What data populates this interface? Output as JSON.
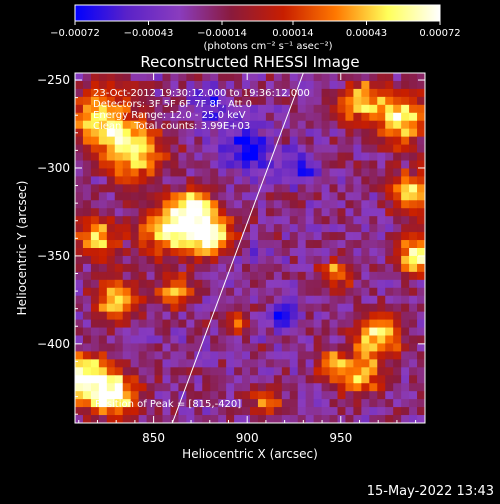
{
  "chart_data": {
    "type": "heatmap",
    "title": "Reconstructed RHESSI Image",
    "xlabel": "Heliocentric X (arcsec)",
    "ylabel": "Heliocentric Y (arcsec)",
    "xlim": [
      808,
      995
    ],
    "ylim": [
      -445,
      -246
    ],
    "x_ticks": [
      850,
      900,
      950
    ],
    "x_tick_labels": [
      "850",
      "900",
      "950"
    ],
    "y_ticks": [
      -250,
      -300,
      -350,
      -400
    ],
    "y_tick_labels": [
      "−250",
      "−300",
      "−350",
      "−400"
    ],
    "colorbar": {
      "range": [
        -0.00072,
        0.00072
      ],
      "ticks": [
        -0.00072,
        -0.00043,
        -0.00014,
        0.00014,
        0.00043,
        0.00072
      ],
      "tick_labels": [
        "−0.00072",
        "−0.00043",
        "−0.00014",
        "0.00014",
        "0.00043",
        "0.00072"
      ],
      "unit_label": "(photons cm⁻² s⁻¹ asec⁻²)",
      "colors": [
        "#0000ff",
        "#5a22c8",
        "#8a3cbe",
        "#8a1a3c",
        "#c81e00",
        "#ff7800",
        "#ffff5a",
        "#ffffff"
      ]
    },
    "annotations": [
      "23-Oct-2012 19:30:12.000 to 19:36:12.000",
      "Detectors: 3F 5F 6F 7F 8F, Att 0",
      "Energy Range: 12.0 - 25.0 keV",
      "Clean    Total counts: 3.99E+03"
    ],
    "peak_label": "Position of Peak = [815,-420]",
    "peak": [
      815,
      -420
    ],
    "limb_line": [
      [
        860,
        -445
      ],
      [
        930,
        -246
      ]
    ],
    "bright_regions": [
      {
        "x": 822,
        "y": -272,
        "r": 17,
        "v": 0.00055
      },
      {
        "x": 840,
        "y": -292,
        "r": 15,
        "v": 0.0006
      },
      {
        "x": 858,
        "y": -335,
        "r": 14,
        "v": 0.00068
      },
      {
        "x": 880,
        "y": -338,
        "r": 12,
        "v": 0.0007
      },
      {
        "x": 872,
        "y": -322,
        "r": 10,
        "v": 0.00062
      },
      {
        "x": 820,
        "y": -340,
        "r": 12,
        "v": 0.00045
      },
      {
        "x": 830,
        "y": -375,
        "r": 12,
        "v": 0.0005
      },
      {
        "x": 814,
        "y": -420,
        "r": 14,
        "v": 0.00072
      },
      {
        "x": 830,
        "y": -430,
        "r": 12,
        "v": 0.00065
      },
      {
        "x": 862,
        "y": -370,
        "r": 9,
        "v": 0.00045
      },
      {
        "x": 960,
        "y": -262,
        "r": 12,
        "v": 0.0005
      },
      {
        "x": 982,
        "y": -272,
        "r": 14,
        "v": 0.0006
      },
      {
        "x": 988,
        "y": -315,
        "r": 12,
        "v": 0.0005
      },
      {
        "x": 990,
        "y": -350,
        "r": 10,
        "v": 0.0006
      },
      {
        "x": 970,
        "y": -395,
        "r": 13,
        "v": 0.00052
      },
      {
        "x": 960,
        "y": -418,
        "r": 11,
        "v": 0.0005
      },
      {
        "x": 948,
        "y": -360,
        "r": 8,
        "v": 0.0004
      },
      {
        "x": 945,
        "y": -412,
        "r": 8,
        "v": 0.00045
      },
      {
        "x": 910,
        "y": -432,
        "r": 8,
        "v": 0.00035
      },
      {
        "x": 895,
        "y": -388,
        "r": 7,
        "v": 0.0003
      }
    ],
    "dark_regions": [
      {
        "x": 900,
        "y": -290,
        "r": 14,
        "v": -0.0007
      },
      {
        "x": 880,
        "y": -265,
        "r": 10,
        "v": -0.00055
      },
      {
        "x": 930,
        "y": -300,
        "r": 10,
        "v": -0.0006
      },
      {
        "x": 920,
        "y": -385,
        "r": 9,
        "v": -0.00065
      },
      {
        "x": 905,
        "y": -350,
        "r": 8,
        "v": -0.0004
      },
      {
        "x": 960,
        "y": -330,
        "r": 7,
        "v": -0.00035
      },
      {
        "x": 950,
        "y": -255,
        "r": 6,
        "v": -0.0004
      }
    ]
  },
  "footer": {
    "timestamp": "15-May-2022 13:43"
  }
}
